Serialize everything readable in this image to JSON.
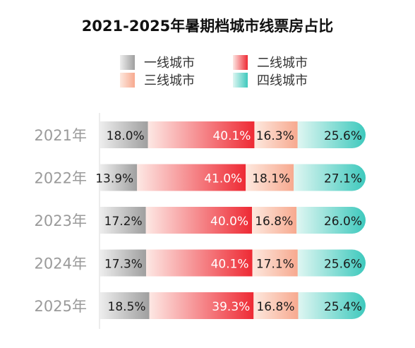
{
  "chart_data": {
    "type": "bar",
    "stacked": true,
    "orientation": "horizontal",
    "title": "2021-2025年暑期档城市线票房占比",
    "categories": [
      "2021年",
      "2022年",
      "2023年",
      "2024年",
      "2025年"
    ],
    "series": [
      {
        "name": "一线城市",
        "values": [
          18.0,
          13.9,
          17.2,
          17.3,
          18.5
        ],
        "labels": [
          "18.0%",
          "13.9%",
          "17.2%",
          "17.3%",
          "18.5%"
        ]
      },
      {
        "name": "二线城市",
        "values": [
          40.1,
          41.0,
          40.0,
          40.1,
          39.3
        ],
        "labels": [
          "40.1%",
          "41.0%",
          "40.0%",
          "40.1%",
          "39.3%"
        ]
      },
      {
        "name": "三线城市",
        "values": [
          16.3,
          18.1,
          16.8,
          17.1,
          16.8
        ],
        "labels": [
          "16.3%",
          "18.1%",
          "16.8%",
          "17.1%",
          "16.8%"
        ]
      },
      {
        "name": "四线城市",
        "values": [
          25.6,
          27.1,
          26.0,
          25.6,
          25.4
        ],
        "labels": [
          "25.6%",
          "27.1%",
          "26.0%",
          "25.6%",
          "25.4%"
        ]
      }
    ],
    "legend_position": "top"
  },
  "colors": {
    "tier1": [
      "#ededed",
      "#9f9f9f"
    ],
    "tier2": [
      "#fde8e4",
      "#ee2a34"
    ],
    "tier3": [
      "#fde8de",
      "#f7a98f"
    ],
    "tier4": [
      "#dff6f2",
      "#3ec9bd"
    ],
    "axis": "#d9d9d9",
    "category_text": "#9a9a9a",
    "title_text": "#111111"
  }
}
